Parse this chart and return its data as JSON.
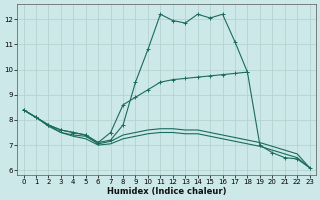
{
  "xlabel": "Humidex (Indice chaleur)",
  "bg_color": "#cce8e8",
  "line_color": "#1a6b5e",
  "grid_color": "#b0d0cc",
  "xlim": [
    -0.5,
    23.5
  ],
  "ylim": [
    5.8,
    12.6
  ],
  "xticks": [
    0,
    1,
    2,
    3,
    4,
    5,
    6,
    7,
    8,
    9,
    10,
    11,
    12,
    13,
    14,
    15,
    16,
    17,
    18,
    19,
    20,
    21,
    22,
    23
  ],
  "yticks": [
    6,
    7,
    8,
    9,
    10,
    11,
    12
  ],
  "curve_main_x": [
    0,
    1,
    2,
    3,
    4,
    5,
    6,
    7,
    8,
    9,
    10,
    11,
    12,
    13,
    14,
    15,
    16,
    17,
    18,
    19,
    20,
    21,
    22,
    23
  ],
  "curve_main_y": [
    8.4,
    8.1,
    7.8,
    7.6,
    7.5,
    7.4,
    7.1,
    7.2,
    7.8,
    9.5,
    10.8,
    12.2,
    11.95,
    11.85,
    12.2,
    12.05,
    12.2,
    11.1,
    9.9,
    7.0,
    6.7,
    6.5,
    6.45,
    6.1
  ],
  "curve_upper_x": [
    0,
    1,
    2,
    3,
    4,
    5,
    6,
    7,
    8,
    9,
    10,
    11,
    12,
    13,
    14,
    15,
    16,
    17,
    18
  ],
  "curve_upper_y": [
    8.4,
    8.1,
    7.8,
    7.6,
    7.5,
    7.4,
    7.1,
    7.5,
    8.6,
    8.9,
    9.2,
    9.5,
    9.6,
    9.65,
    9.7,
    9.75,
    9.8,
    9.85,
    9.9
  ],
  "curve_lower1_x": [
    0,
    1,
    2,
    3,
    4,
    5,
    6,
    7,
    8,
    9,
    10,
    11,
    12,
    13,
    14,
    15,
    16,
    17,
    18,
    19,
    20,
    21,
    22,
    23
  ],
  "curve_lower1_y": [
    8.4,
    8.1,
    7.8,
    7.5,
    7.4,
    7.35,
    7.05,
    7.15,
    7.4,
    7.5,
    7.6,
    7.65,
    7.65,
    7.6,
    7.6,
    7.5,
    7.4,
    7.3,
    7.2,
    7.1,
    6.95,
    6.8,
    6.65,
    6.1
  ],
  "curve_lower2_x": [
    0,
    1,
    2,
    3,
    4,
    5,
    6,
    7,
    8,
    9,
    10,
    11,
    12,
    13,
    14,
    15,
    16,
    17,
    18,
    19,
    20,
    21,
    22,
    23
  ],
  "curve_lower2_y": [
    8.4,
    8.1,
    7.75,
    7.5,
    7.35,
    7.25,
    7.0,
    7.05,
    7.25,
    7.35,
    7.45,
    7.5,
    7.5,
    7.45,
    7.45,
    7.35,
    7.25,
    7.15,
    7.05,
    6.95,
    6.8,
    6.65,
    6.5,
    6.1
  ]
}
